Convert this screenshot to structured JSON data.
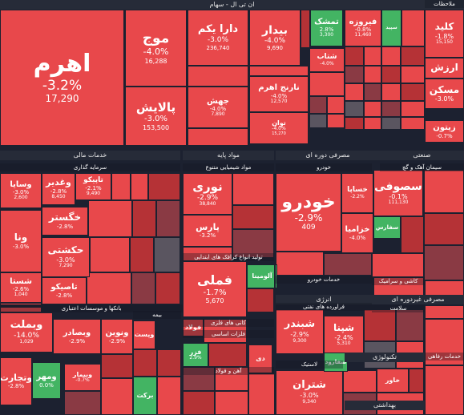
{
  "colors": {
    "r": "#e8484b",
    "r2": "#d63c3f",
    "dr": "#b53236",
    "m": "#8a3a44",
    "g": "#43b463",
    "lg": "#3f9a55",
    "dg": "#2f6d40",
    "gr": "#5a5560",
    "w": "#f2f2f2"
  },
  "sections": [
    {
      "label": "ان تی ال - سهام"
    },
    {
      "label": "خدمات مالی"
    },
    {
      "label": "مواد پایه"
    },
    {
      "label": "مصرفی دوره ای"
    },
    {
      "label": "صنعتی"
    },
    {
      "label": "سرمایه گذاری"
    },
    {
      "label": "مواد شیمیایی متنوع"
    },
    {
      "label": "خودرو"
    },
    {
      "label": "سیمان آهک و گچ"
    },
    {
      "label": "بانکها و موسسات اعتباری"
    },
    {
      "label": "تولید انواع کرافک های ابتدایی"
    },
    {
      "label": "کانی های فلزی"
    },
    {
      "label": "انرژی"
    },
    {
      "label": "فراورده های نفتی"
    },
    {
      "label": "مصرفی غیردوره ای"
    },
    {
      "label": "تکنولوژی"
    },
    {
      "label": "بیمه"
    },
    {
      "label": "خدمات رفاهی"
    },
    {
      "label": "بهداشتی"
    },
    {
      "label": "سلامت"
    },
    {
      "label": "ملاحظات"
    },
    {
      "label": "آهن و فولاد"
    },
    {
      "label": "فلزات اساسی"
    },
    {
      "label": "کاشی و سرامیک"
    },
    {
      "label": "خدمات خودرو"
    },
    {
      "label": "لاستیک"
    }
  ],
  "tiles": [
    {
      "name": "اهرم",
      "pct": "-3.2%",
      "vol": "17,290"
    },
    {
      "name": "موج",
      "pct": "-4.0%",
      "vol": "16,288"
    },
    {
      "name": "پالایش",
      "pct": "-3.0%",
      "vol": "153,500"
    },
    {
      "name": "دارا یکم",
      "pct": "-3.0%",
      "vol": "236,740"
    },
    {
      "name": "جهش",
      "pct": "-4.0%",
      "vol": "7,890"
    },
    {
      "name": "بیدار",
      "pct": "-4.0%",
      "vol": "9,690"
    },
    {
      "name": "نارنج اهرم",
      "pct": "-4.0%",
      "vol": "12,570"
    },
    {
      "name": "توان",
      "pct": "-4.0%",
      "vol": "15,270"
    },
    {
      "name": "شتاب",
      "pct": "-4.0%",
      "vol": ""
    },
    {
      "name": "تمشک",
      "pct": "2.8%",
      "vol": "3,300"
    },
    {
      "name": "فیروزه",
      "pct": "-0.8%",
      "vol": "11,460"
    },
    {
      "name": "سپید",
      "pct": "",
      "vol": ""
    },
    {
      "name": "کلید",
      "pct": "-1.8%",
      "vol": "15,150"
    },
    {
      "name": "ارزش",
      "pct": "",
      "vol": ""
    },
    {
      "name": "مسکن",
      "pct": "-3.0%",
      "vol": ""
    },
    {
      "name": "زیتون",
      "pct": "-0.7%",
      "vol": ""
    },
    {
      "name": "وغدیر",
      "pct": "-2.8%",
      "vol": "8,450"
    },
    {
      "name": "تاپیکو",
      "pct": "-2.1%",
      "vol": "9,490"
    },
    {
      "name": "وسایا",
      "pct": "-3.0%",
      "vol": "2,600"
    },
    {
      "name": "خگستر",
      "pct": "-2.8%",
      "vol": ""
    },
    {
      "name": "ونا",
      "pct": "-3.0%",
      "vol": ""
    },
    {
      "name": "حکشتی",
      "pct": "-3.0%",
      "vol": "7,290"
    },
    {
      "name": "شستا",
      "pct": "-2.6%",
      "vol": "1,040"
    },
    {
      "name": "تاصیکو",
      "pct": "-2.8%",
      "vol": ""
    },
    {
      "name": "نوری",
      "pct": "-2.9%",
      "vol": "38,840"
    },
    {
      "name": "پارس",
      "pct": "-3.2%",
      "vol": ""
    },
    {
      "name": "خودرو",
      "pct": "-2.9%",
      "vol": "409"
    },
    {
      "name": "خساپا",
      "pct": "-2.2%",
      "vol": ""
    },
    {
      "name": "خزامیا",
      "pct": "-4.0%",
      "vol": ""
    },
    {
      "name": "سصوفی",
      "pct": "-0.1%",
      "vol": "111,130"
    },
    {
      "name": "سفارس",
      "pct": "",
      "vol": ""
    },
    {
      "name": "وبملت",
      "pct": "-14.0%",
      "vol": "1,029"
    },
    {
      "name": "وبصادر",
      "pct": "-2.9%",
      "vol": ""
    },
    {
      "name": "ونوین",
      "pct": "-2.9%",
      "vol": ""
    },
    {
      "name": "وتجارت",
      "pct": "-2.8%",
      "vol": ""
    },
    {
      "name": "وپست",
      "pct": "",
      "vol": ""
    },
    {
      "name": "ومهر",
      "pct": "0.0%",
      "vol": ""
    },
    {
      "name": "وبیمار",
      "pct": "-0.7%",
      "vol": ""
    },
    {
      "name": "فملی",
      "pct": "-1.7%",
      "vol": "5,670"
    },
    {
      "name": "فولاد",
      "pct": "",
      "vol": ""
    },
    {
      "name": "فزر",
      "pct": "2.9%",
      "vol": ""
    },
    {
      "name": "شبندر",
      "pct": "-2.9%",
      "vol": "9,300"
    },
    {
      "name": "شپنا",
      "pct": "-2.4%",
      "vol": "5,310"
    },
    {
      "name": "شتران",
      "pct": "-3.0%",
      "vol": "9,340"
    },
    {
      "name": "آلومینا",
      "pct": "",
      "vol": ""
    },
    {
      "name": "سفارود",
      "pct": "",
      "vol": ""
    },
    {
      "name": "برکت",
      "pct": "",
      "vol": ""
    },
    {
      "name": "دی",
      "pct": "",
      "vol": ""
    },
    {
      "name": "خاور",
      "pct": "",
      "vol": ""
    }
  ]
}
